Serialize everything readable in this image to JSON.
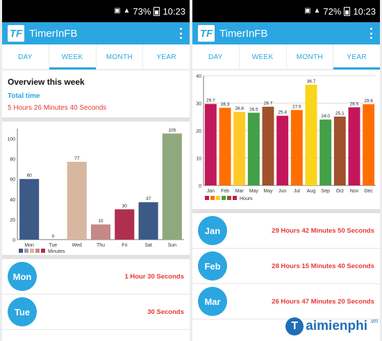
{
  "left": {
    "status": {
      "battery": "73%",
      "time": "10:23"
    },
    "app": {
      "logo": "TF",
      "title": "TimerInFB"
    },
    "tabs": [
      {
        "label": "DAY",
        "active": false
      },
      {
        "label": "WEEK",
        "active": true
      },
      {
        "label": "MONTH",
        "active": false
      },
      {
        "label": "YEAR",
        "active": false
      }
    ],
    "overview": {
      "title": "Overview this week",
      "total_label": "Total time",
      "total_value": "5 Hours 26 Minutes 40 Seconds"
    },
    "list": [
      {
        "day": "Mon",
        "duration": "1 Hour 30 Seconds"
      },
      {
        "day": "Tue",
        "duration": "30 Seconds"
      }
    ]
  },
  "right": {
    "status": {
      "battery": "72%",
      "time": "10:23"
    },
    "app": {
      "logo": "TF",
      "title": "TimerInFB"
    },
    "tabs": [
      {
        "label": "DAY",
        "active": false
      },
      {
        "label": "WEEK",
        "active": false
      },
      {
        "label": "MONTH",
        "active": false
      },
      {
        "label": "YEAR",
        "active": true
      }
    ],
    "list": [
      {
        "month": "Jan",
        "duration": "29 Hours 42 Minutes 50 Seconds"
      },
      {
        "month": "Feb",
        "duration": "28 Hours 15 Minutes 40 Seconds"
      },
      {
        "month": "Mar",
        "duration": "26 Hours 47 Minutes 20 Seconds"
      }
    ]
  },
  "watermark": {
    "logo": "T",
    "text": "aimienphi",
    "suffix": ".vn"
  },
  "chart_data": [
    {
      "type": "bar",
      "categories": [
        "Mon",
        "Tue",
        "Wed",
        "Thu",
        "Fri",
        "Sat",
        "Sun"
      ],
      "values": [
        60,
        0,
        77,
        15,
        30,
        37,
        105
      ],
      "labels": [
        "60",
        "0",
        "77",
        "15",
        "30",
        "37",
        "105"
      ],
      "colors": [
        "#3d5a87",
        "#3d5a87",
        "#d8b7a0",
        "#c48a87",
        "#b02f4f",
        "#3d5a87",
        "#90a97c"
      ],
      "legend_colors": [
        "#3d5a87",
        "#9aa0a6",
        "#d8b7a0",
        "#c48a87",
        "#b02f4f"
      ],
      "legend": "Minutes",
      "legend_position": "bottom-left",
      "ylim": [
        0,
        110
      ],
      "yticks": [
        0,
        20,
        40,
        60,
        80,
        100
      ],
      "grid": false
    },
    {
      "type": "bar",
      "categories": [
        "Jan",
        "Feb",
        "Mar",
        "May",
        "May",
        "Jun",
        "Jul",
        "Aug",
        "Sep",
        "Oct",
        "Nov",
        "Dec"
      ],
      "values": [
        29.7,
        28.3,
        26.8,
        26.5,
        28.7,
        25.4,
        27.5,
        36.7,
        24.0,
        25.1,
        28.5,
        29.6
      ],
      "labels": [
        "29.7",
        "28.3",
        "26.8",
        "26.5",
        "28.7",
        "25.4",
        "27.5",
        "36.7",
        "24.0",
        "25.1",
        "28.5",
        "29.6"
      ],
      "colors": [
        "#c2185b",
        "#ff6f00",
        "#ffca28",
        "#43a047",
        "#a0522d",
        "#c2185b",
        "#ff6f00",
        "#f9d51c",
        "#43a047",
        "#a0522d",
        "#c2185b",
        "#ff6f00"
      ],
      "legend_colors": [
        "#c2185b",
        "#ff6f00",
        "#ffca28",
        "#43a047",
        "#a0522d",
        "#c2185b"
      ],
      "legend": "Hours",
      "legend_position": "bottom-left",
      "ylim": [
        0,
        40
      ],
      "yticks": [
        0,
        10,
        20,
        30,
        40
      ],
      "grid": true
    }
  ]
}
